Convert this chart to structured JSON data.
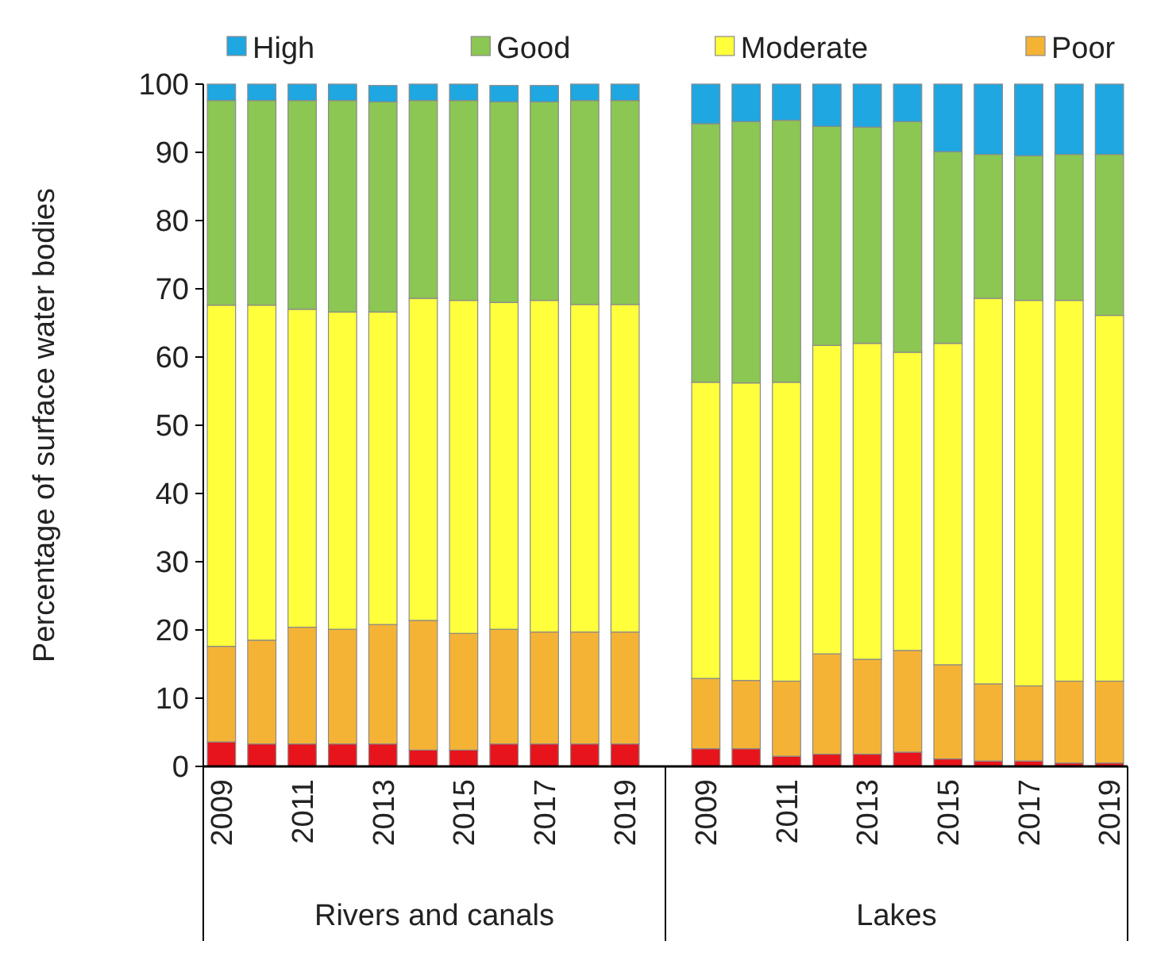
{
  "chart_data": {
    "type": "bar",
    "stacked": true,
    "ylabel": "Percentage of surface water bodies",
    "legend": "top",
    "grid": false,
    "categories": [
      "2009",
      null,
      "2011",
      null,
      "2013",
      null,
      "2015",
      null,
      "2017",
      null,
      "2019",
      null,
      "2009",
      null,
      "2011",
      null,
      "2013",
      null,
      "2015",
      null,
      "2017",
      null,
      "2019"
    ],
    "annotations": [
      "Rivers and canals",
      "Lakes"
    ],
    "ylim": [
      0,
      100
    ],
    "yticks": [
      0,
      10,
      20,
      30,
      40,
      50,
      60,
      70,
      80,
      90,
      100
    ],
    "series": [
      {
        "color": "#e8141b",
        "values": [
          3.6,
          3.3,
          3.3,
          3.3,
          3.3,
          2.4,
          2.4,
          3.3,
          3.3,
          3.3,
          3.3,
          null,
          2.6,
          2.6,
          1.5,
          1.8,
          1.8,
          2.1,
          1.1,
          0.8,
          0.8,
          0.5,
          0.5
        ]
      },
      {
        "name": "Poor",
        "color": "#f5b335",
        "values": [
          14.0,
          15.2,
          17.1,
          16.8,
          17.5,
          19.0,
          17.1,
          16.8,
          16.4,
          16.4,
          16.4,
          null,
          10.3,
          10.0,
          11.0,
          14.7,
          13.9,
          14.9,
          13.8,
          11.3,
          11.0,
          12.0,
          12.0
        ]
      },
      {
        "name": "Moderate",
        "color": "#ffff3c",
        "values": [
          50.0,
          49.1,
          46.6,
          46.5,
          45.8,
          47.2,
          48.8,
          47.9,
          48.6,
          48.0,
          48.0,
          null,
          43.4,
          43.6,
          43.8,
          45.2,
          46.3,
          43.7,
          47.1,
          56.5,
          56.5,
          55.8,
          53.6
        ]
      },
      {
        "name": "Good",
        "color": "#8cc653",
        "values": [
          30.0,
          30.0,
          30.6,
          31.0,
          30.8,
          29.0,
          29.3,
          29.4,
          29.1,
          29.9,
          29.9,
          null,
          37.9,
          38.3,
          38.4,
          32.1,
          31.7,
          33.8,
          28.1,
          21.1,
          21.2,
          21.4,
          23.6
        ]
      },
      {
        "name": "High",
        "color": "#1ea7e1",
        "values": [
          2.4,
          2.4,
          2.4,
          2.4,
          2.4,
          2.4,
          2.4,
          2.4,
          2.4,
          2.4,
          2.4,
          null,
          5.8,
          5.5,
          5.3,
          6.2,
          6.3,
          5.5,
          9.9,
          10.3,
          10.5,
          10.3,
          10.3
        ]
      }
    ]
  }
}
